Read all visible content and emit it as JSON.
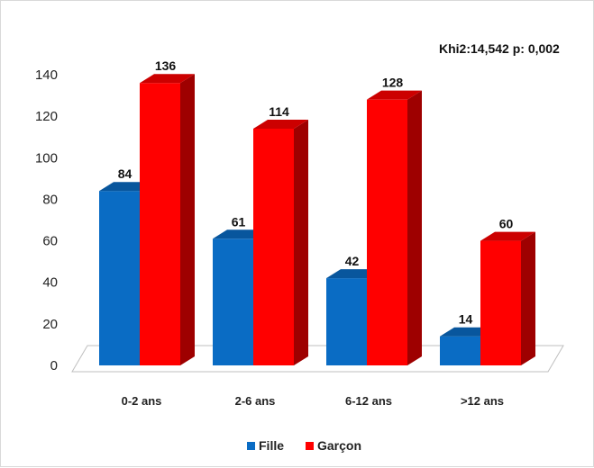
{
  "chart_data": {
    "type": "bar",
    "style": "3d-clustered",
    "categories": [
      "0-2 ans",
      "2-6 ans",
      "6-12 ans",
      ">12 ans"
    ],
    "series": [
      {
        "name": "Fille",
        "color": "#0a6cc4",
        "values": [
          84,
          61,
          42,
          14
        ]
      },
      {
        "name": "Garçon",
        "color": "#ff0000",
        "values": [
          136,
          114,
          128,
          60
        ]
      }
    ],
    "ylim": [
      0,
      140
    ],
    "yticks": [
      0,
      20,
      40,
      60,
      80,
      100,
      120,
      140
    ],
    "annotation": "Khi2:14,542  p: 0,002",
    "legend_position": "bottom",
    "grid": false
  }
}
